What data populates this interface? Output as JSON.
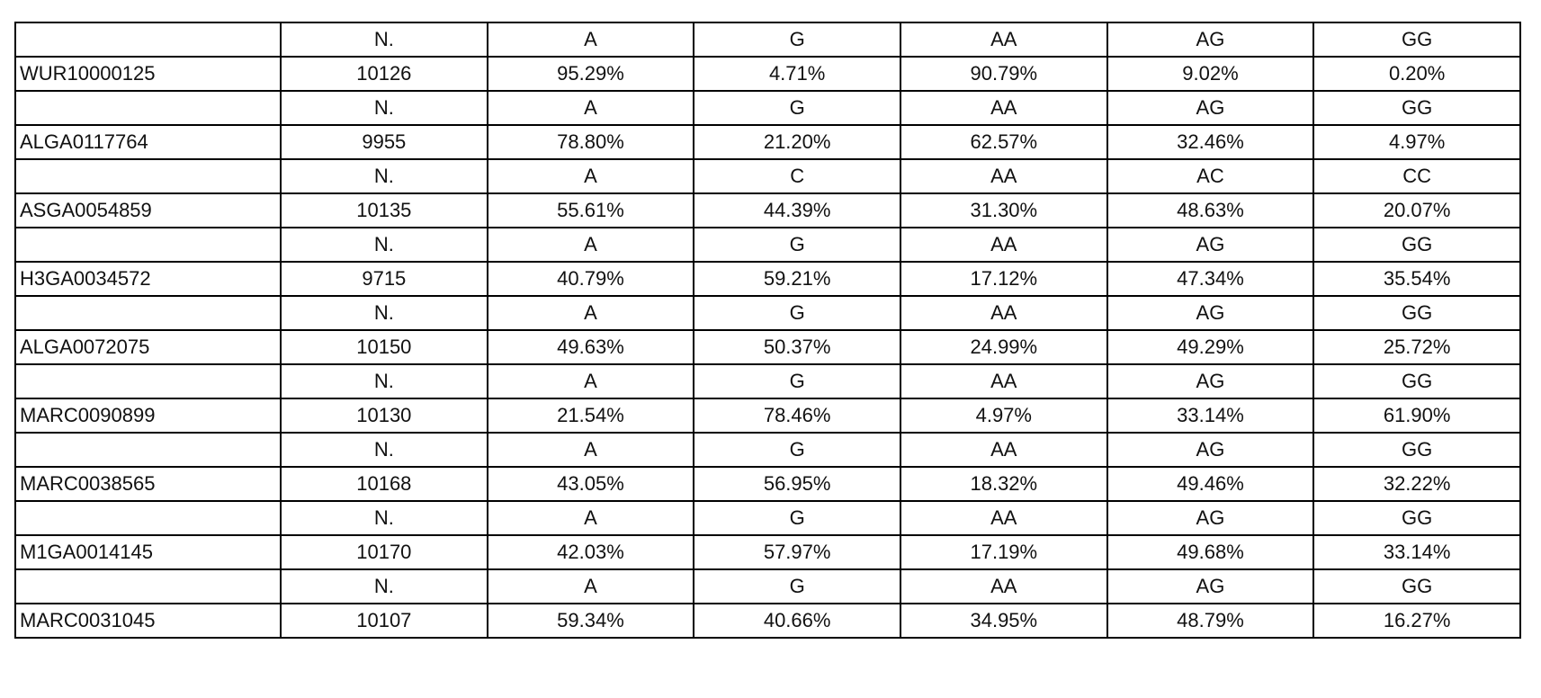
{
  "table": {
    "blocks": [
      {
        "header": [
          "N.",
          "A",
          "G",
          "AA",
          "AG",
          "GG"
        ],
        "marker": "WUR10000125",
        "values": [
          "10126",
          "95.29%",
          "4.71%",
          "90.79%",
          "9.02%",
          "0.20%"
        ]
      },
      {
        "header": [
          "N.",
          "A",
          "G",
          "AA",
          "AG",
          "GG"
        ],
        "marker": "ALGA0117764",
        "values": [
          "9955",
          "78.80%",
          "21.20%",
          "62.57%",
          "32.46%",
          "4.97%"
        ]
      },
      {
        "header": [
          "N.",
          "A",
          "C",
          "AA",
          "AC",
          "CC"
        ],
        "marker": "ASGA0054859",
        "values": [
          "10135",
          "55.61%",
          "44.39%",
          "31.30%",
          "48.63%",
          "20.07%"
        ]
      },
      {
        "header": [
          "N.",
          "A",
          "G",
          "AA",
          "AG",
          "GG"
        ],
        "marker": "H3GA0034572",
        "values": [
          "9715",
          "40.79%",
          "59.21%",
          "17.12%",
          "47.34%",
          "35.54%"
        ]
      },
      {
        "header": [
          "N.",
          "A",
          "G",
          "AA",
          "AG",
          "GG"
        ],
        "marker": "ALGA0072075",
        "values": [
          "10150",
          "49.63%",
          "50.37%",
          "24.99%",
          "49.29%",
          "25.72%"
        ]
      },
      {
        "header": [
          "N.",
          "A",
          "G",
          "AA",
          "AG",
          "GG"
        ],
        "marker": "MARC0090899",
        "values": [
          "10130",
          "21.54%",
          "78.46%",
          "4.97%",
          "33.14%",
          "61.90%"
        ]
      },
      {
        "header": [
          "N.",
          "A",
          "G",
          "AA",
          "AG",
          "GG"
        ],
        "marker": "MARC0038565",
        "values": [
          "10168",
          "43.05%",
          "56.95%",
          "18.32%",
          "49.46%",
          "32.22%"
        ]
      },
      {
        "header": [
          "N.",
          "A",
          "G",
          "AA",
          "AG",
          "GG"
        ],
        "marker": "M1GA0014145",
        "values": [
          "10170",
          "42.03%",
          "57.97%",
          "17.19%",
          "49.68%",
          "33.14%"
        ]
      },
      {
        "header": [
          "N.",
          "A",
          "G",
          "AA",
          "AG",
          "GG"
        ],
        "marker": "MARC0031045",
        "values": [
          "10107",
          "59.34%",
          "40.66%",
          "34.95%",
          "48.79%",
          "16.27%"
        ]
      }
    ]
  }
}
